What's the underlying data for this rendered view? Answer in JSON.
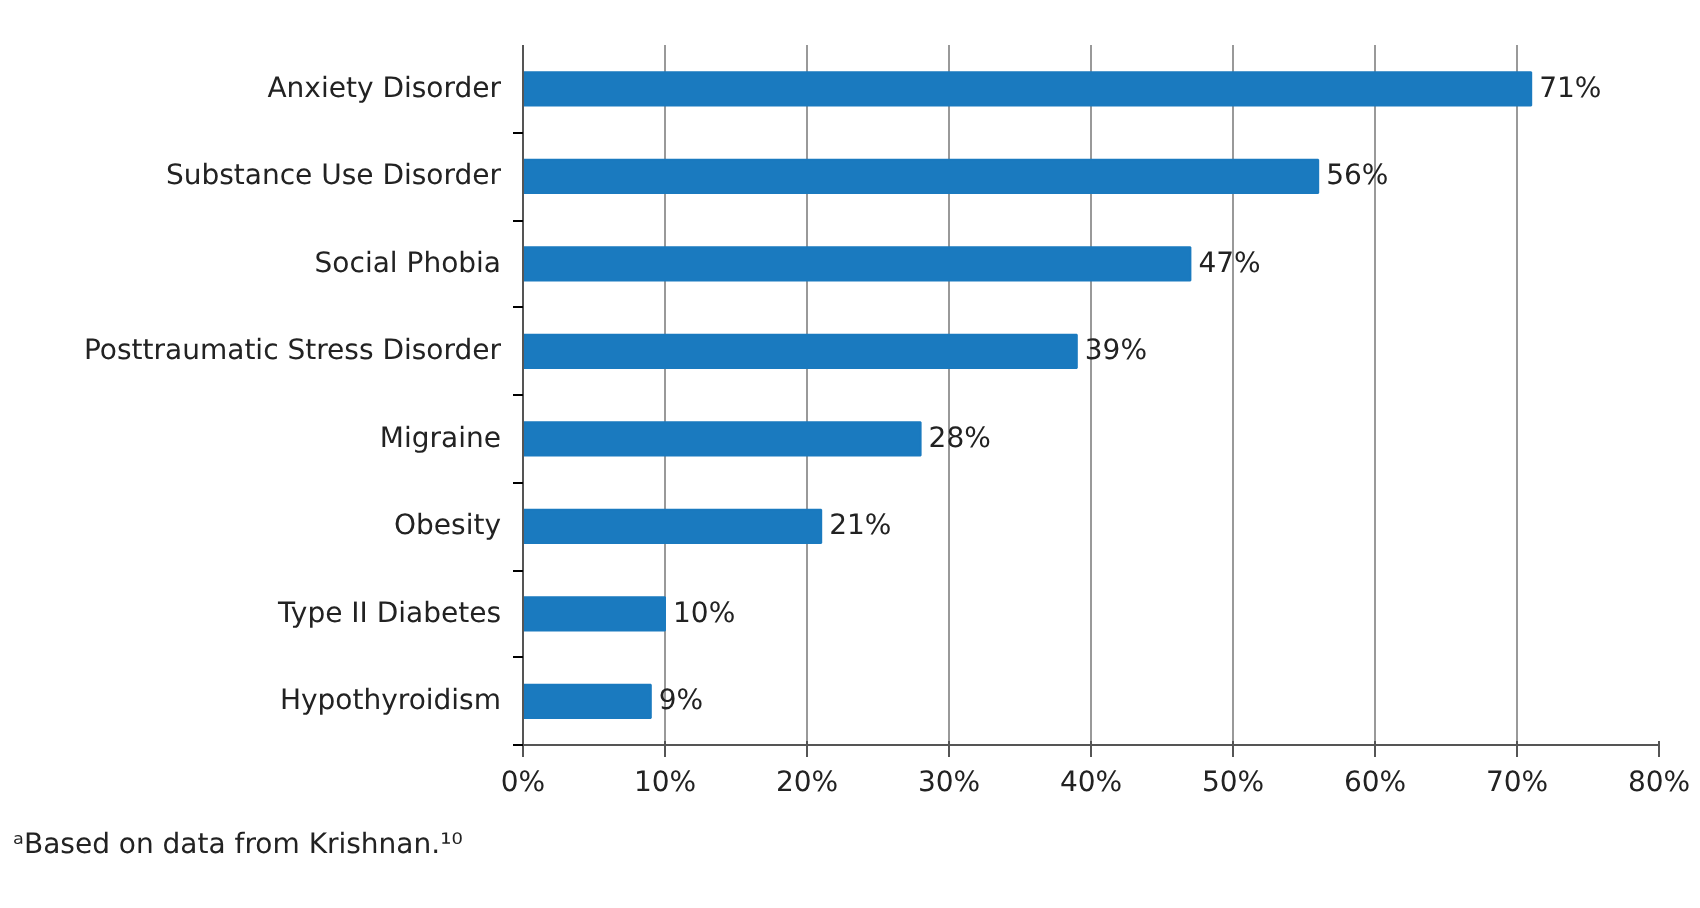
{
  "chart_data": {
    "type": "bar",
    "orientation": "horizontal",
    "categories": [
      "Anxiety Disorder",
      "Substance Use Disorder",
      "Social Phobia",
      "Posttraumatic Stress Disorder",
      "Migraine",
      "Obesity",
      "Type II Diabetes",
      "Hypothyroidism"
    ],
    "values": [
      71,
      56,
      47,
      39,
      28,
      21,
      10,
      9
    ],
    "value_labels": [
      "71%",
      "56%",
      "47%",
      "39%",
      "28%",
      "21%",
      "10%",
      "9%"
    ],
    "color": "#1a7abf",
    "xlim": [
      0,
      80
    ],
    "xticks": [
      {
        "value": 0,
        "label": "0%"
      },
      {
        "value": 10,
        "label": "10%"
      },
      {
        "value": 20,
        "label": "20%"
      },
      {
        "value": 30,
        "label": "30%"
      },
      {
        "value": 40,
        "label": "40%"
      },
      {
        "value": 50,
        "label": "50%"
      },
      {
        "value": 60,
        "label": "60%"
      },
      {
        "value": 70,
        "label": "70%"
      },
      {
        "value": 80,
        "label": "80%"
      }
    ],
    "grid": "x",
    "annotations": [
      "ᵃBased on data from Krishnan.¹⁰"
    ]
  }
}
